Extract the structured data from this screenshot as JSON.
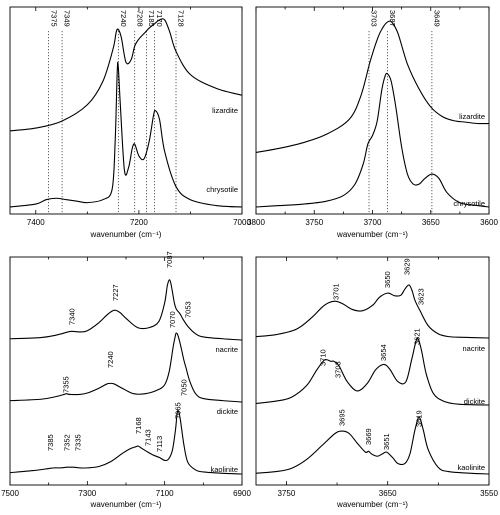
{
  "chart_data": [
    {
      "id": "serpentine-overtone",
      "type": "line",
      "xlabel": "wavenumber (cm⁻¹)",
      "xlim": [
        7450,
        7000
      ],
      "xticks": [
        7400,
        7200,
        7000
      ],
      "x_tick_labels": [
        "7400",
        "7200",
        "7000"
      ],
      "dotted_lines": [
        7375,
        7349,
        7240,
        7208,
        7185,
        7170,
        7128
      ],
      "peak_labels": [
        "7375",
        "7349",
        "7240",
        "7208",
        "7185",
        "7170",
        "7128"
      ],
      "series": [
        {
          "name": "lizardite",
          "x": [
            7450,
            7400,
            7350,
            7300,
            7270,
            7250,
            7244,
            7240,
            7234,
            7225,
            7215,
            7208,
            7200,
            7190,
            7180,
            7170,
            7160,
            7150,
            7140,
            7128,
            7100,
            7050,
            7000
          ],
          "y": [
            0.14,
            0.16,
            0.21,
            0.33,
            0.5,
            0.74,
            0.86,
            0.88,
            0.82,
            0.64,
            0.66,
            0.76,
            0.81,
            0.85,
            0.89,
            0.92,
            0.95,
            0.95,
            0.86,
            0.72,
            0.55,
            0.45,
            0.4
          ]
        },
        {
          "name": "chrysotile",
          "x": [
            7450,
            7400,
            7380,
            7360,
            7340,
            7320,
            7300,
            7270,
            7252,
            7246,
            7242,
            7240,
            7236,
            7228,
            7220,
            7213,
            7208,
            7200,
            7190,
            7180,
            7172,
            7168,
            7160,
            7150,
            7128,
            7100,
            7050,
            7000
          ],
          "y": [
            0.0,
            0.02,
            0.05,
            0.06,
            0.05,
            0.04,
            0.03,
            0.05,
            0.12,
            0.45,
            0.93,
            0.96,
            0.7,
            0.25,
            0.27,
            0.4,
            0.43,
            0.35,
            0.33,
            0.45,
            0.62,
            0.66,
            0.6,
            0.38,
            0.14,
            0.05,
            0.01,
            0.0
          ]
        }
      ]
    },
    {
      "id": "serpentine-fundamental",
      "type": "line",
      "xlabel": "wavenumber (cm⁻¹)",
      "xlim": [
        3800,
        3600
      ],
      "xticks": [
        3800,
        3750,
        3700,
        3650,
        3600
      ],
      "x_tick_labels": [
        "3800",
        "3750",
        "3700",
        "3650",
        "3600"
      ],
      "dotted_lines": [
        3703,
        3687,
        3649
      ],
      "peak_labels": [
        "3703",
        "3687",
        "3649"
      ],
      "series": [
        {
          "name": "lizardite",
          "x": [
            3800,
            3780,
            3760,
            3740,
            3720,
            3710,
            3702,
            3695,
            3690,
            3686,
            3683,
            3678,
            3670,
            3660,
            3650,
            3640,
            3630,
            3620,
            3610,
            3600
          ],
          "y": [
            0.04,
            0.07,
            0.11,
            0.17,
            0.28,
            0.45,
            0.7,
            0.88,
            0.96,
            0.99,
            0.98,
            0.9,
            0.68,
            0.5,
            0.37,
            0.3,
            0.27,
            0.26,
            0.25,
            0.25
          ]
        },
        {
          "name": "chrysotile",
          "x": [
            3800,
            3780,
            3760,
            3740,
            3725,
            3715,
            3708,
            3704,
            3700,
            3696,
            3692,
            3689,
            3687,
            3684,
            3680,
            3675,
            3670,
            3665,
            3660,
            3655,
            3649,
            3643,
            3636,
            3625,
            3610,
            3600
          ],
          "y": [
            0.0,
            0.01,
            0.02,
            0.04,
            0.08,
            0.16,
            0.3,
            0.44,
            0.5,
            0.6,
            0.82,
            0.92,
            0.93,
            0.88,
            0.7,
            0.42,
            0.23,
            0.16,
            0.16,
            0.2,
            0.23,
            0.2,
            0.1,
            0.03,
            0.01,
            0.0
          ]
        }
      ]
    },
    {
      "id": "kaolin-overtone",
      "type": "line",
      "xlabel": "wavenumber (cm⁻¹)",
      "xlim": [
        7500,
        6900
      ],
      "xticks": [
        7500,
        7300,
        7100,
        6900
      ],
      "x_tick_labels": [
        "7500",
        "7300",
        "7100",
        "6900"
      ],
      "series": [
        {
          "name": "nacrite",
          "x": [
            7500,
            7420,
            7380,
            7350,
            7340,
            7320,
            7300,
            7270,
            7250,
            7235,
            7227,
            7215,
            7200,
            7170,
            7140,
            7115,
            7100,
            7093,
            7087,
            7082,
            7075,
            7070,
            7060,
            7053,
            7040,
            7020,
            7000,
            6950,
            6900
          ],
          "y": [
            0.02,
            0.04,
            0.08,
            0.13,
            0.14,
            0.13,
            0.15,
            0.28,
            0.4,
            0.47,
            0.48,
            0.44,
            0.35,
            0.2,
            0.2,
            0.3,
            0.6,
            0.88,
            0.97,
            0.85,
            0.6,
            0.5,
            0.42,
            0.34,
            0.22,
            0.1,
            0.05,
            0.02,
            0.0
          ]
        },
        {
          "name": "dickite",
          "x": [
            7500,
            7420,
            7380,
            7360,
            7355,
            7345,
            7320,
            7300,
            7270,
            7250,
            7240,
            7230,
            7210,
            7180,
            7150,
            7120,
            7100,
            7088,
            7078,
            7072,
            7070,
            7066,
            7060,
            7054,
            7050,
            7045,
            7035,
            7020,
            7000,
            6950,
            6900
          ],
          "y": [
            0.02,
            0.04,
            0.08,
            0.11,
            0.12,
            0.11,
            0.11,
            0.13,
            0.2,
            0.26,
            0.27,
            0.26,
            0.2,
            0.12,
            0.12,
            0.17,
            0.25,
            0.45,
            0.8,
            0.97,
            1.0,
            0.97,
            0.85,
            0.7,
            0.6,
            0.5,
            0.3,
            0.12,
            0.05,
            0.02,
            0.0
          ]
        },
        {
          "name": "kaolinite",
          "x": [
            7500,
            7440,
            7400,
            7385,
            7370,
            7352,
            7340,
            7335,
            7320,
            7300,
            7270,
            7240,
            7210,
            7190,
            7175,
            7168,
            7160,
            7143,
            7130,
            7113,
            7100,
            7090,
            7080,
            7072,
            7068,
            7065,
            7060,
            7050,
            7040,
            7020,
            7000,
            6950,
            6900
          ],
          "y": [
            0.02,
            0.05,
            0.08,
            0.09,
            0.09,
            0.1,
            0.1,
            0.1,
            0.09,
            0.09,
            0.11,
            0.18,
            0.3,
            0.37,
            0.4,
            0.41,
            0.38,
            0.32,
            0.28,
            0.24,
            0.2,
            0.22,
            0.35,
            0.65,
            0.88,
            0.93,
            0.82,
            0.42,
            0.17,
            0.06,
            0.03,
            0.01,
            0.0
          ]
        }
      ]
    },
    {
      "id": "kaolin-fundamental",
      "type": "line",
      "xlabel": "wavenumber (cm⁻¹)",
      "xlim": [
        3780,
        3550
      ],
      "xticks": [
        3750,
        3650,
        3550
      ],
      "x_tick_labels": [
        "3750",
        "3650",
        "3550"
      ],
      "series": [
        {
          "name": "nacrite",
          "x": [
            3780,
            3760,
            3740,
            3725,
            3715,
            3708,
            3701,
            3694,
            3685,
            3675,
            3665,
            3658,
            3650,
            3643,
            3637,
            3633,
            3629,
            3626,
            3623,
            3618,
            3610,
            3600,
            3590,
            3575,
            3550
          ],
          "y": [
            0.02,
            0.05,
            0.13,
            0.3,
            0.45,
            0.52,
            0.54,
            0.5,
            0.42,
            0.4,
            0.48,
            0.6,
            0.66,
            0.62,
            0.63,
            0.72,
            0.78,
            0.7,
            0.55,
            0.4,
            0.18,
            0.06,
            0.02,
            0.01,
            0.0
          ]
        },
        {
          "name": "dickite",
          "x": [
            3780,
            3760,
            3745,
            3730,
            3720,
            3713,
            3710,
            3706,
            3703,
            3698,
            3690,
            3680,
            3670,
            3662,
            3654,
            3648,
            3640,
            3632,
            3626,
            3621,
            3617,
            3612,
            3605,
            3595,
            3580,
            3550
          ],
          "y": [
            0.02,
            0.05,
            0.1,
            0.25,
            0.45,
            0.57,
            0.58,
            0.56,
            0.56,
            0.5,
            0.3,
            0.18,
            0.28,
            0.45,
            0.52,
            0.46,
            0.3,
            0.3,
            0.6,
            0.85,
            0.72,
            0.4,
            0.15,
            0.05,
            0.01,
            0.0
          ]
        },
        {
          "name": "kaolinite",
          "x": [
            3780,
            3760,
            3745,
            3730,
            3715,
            3702,
            3695,
            3688,
            3680,
            3672,
            3669,
            3665,
            3660,
            3655,
            3651,
            3645,
            3640,
            3633,
            3628,
            3623,
            3619,
            3615,
            3610,
            3600,
            3590,
            3570,
            3550
          ],
          "y": [
            0.01,
            0.03,
            0.07,
            0.18,
            0.35,
            0.5,
            0.53,
            0.5,
            0.38,
            0.27,
            0.28,
            0.24,
            0.22,
            0.25,
            0.27,
            0.2,
            0.13,
            0.13,
            0.25,
            0.55,
            0.7,
            0.55,
            0.3,
            0.08,
            0.03,
            0.01,
            0.0
          ]
        }
      ]
    }
  ]
}
